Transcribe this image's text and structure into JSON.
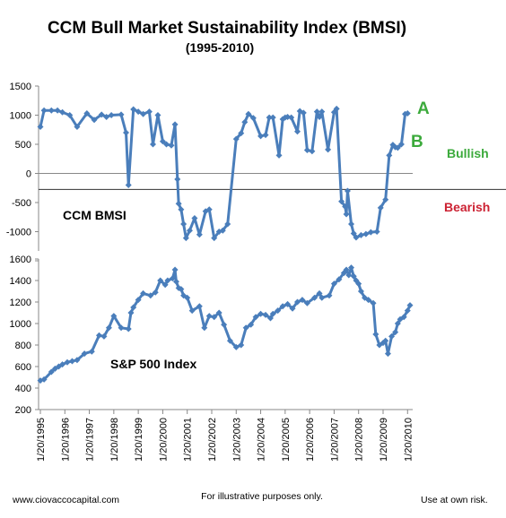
{
  "chart_data": [
    {
      "type": "line",
      "title": "CCM Bull Market Sustainability Index (BMSI)",
      "subtitle": "(1995-2010)",
      "series_label": "CCM BMSI",
      "ylim": [
        -1500,
        1500
      ],
      "yticks": [
        1500,
        1000,
        500,
        0,
        -500,
        -1000,
        -1500
      ],
      "ytick_labels": [
        "1500",
        "1000",
        "500",
        "0",
        "-500",
        "-1000",
        ""
      ],
      "threshold_line": -275,
      "zones": {
        "bullish": "Bullish",
        "bearish": "Bearish"
      },
      "markers": {
        "a": "A",
        "b": "B"
      },
      "colors": {
        "line": "#4a7ebb",
        "bullish": "#3caa3c",
        "bearish": "#cc2233",
        "marker_a": "#3caa3c",
        "marker_b": "#3caa3c"
      },
      "x_range": [
        1995.0,
        2010.1
      ],
      "x": [
        1995.0,
        1995.15,
        1995.45,
        1995.7,
        1995.9,
        1996.2,
        1996.5,
        1996.9,
        1997.2,
        1997.5,
        1997.7,
        1997.9,
        1998.3,
        1998.5,
        1998.6,
        1998.8,
        1999.0,
        1999.2,
        1999.45,
        1999.6,
        1999.8,
        2000.0,
        2000.15,
        2000.35,
        2000.5,
        2000.6,
        2000.65,
        2000.75,
        2000.85,
        2000.95,
        2001.1,
        2001.3,
        2001.5,
        2001.75,
        2001.9,
        2002.1,
        2002.3,
        2002.45,
        2002.65,
        2003.0,
        2003.2,
        2003.35,
        2003.5,
        2003.7,
        2004.0,
        2004.2,
        2004.35,
        2004.5,
        2004.75,
        2004.9,
        2005.0,
        2005.1,
        2005.25,
        2005.5,
        2005.6,
        2005.75,
        2005.9,
        2006.1,
        2006.3,
        2006.4,
        2006.5,
        2006.75,
        2007.0,
        2007.1,
        2007.3,
        2007.45,
        2007.5,
        2007.55,
        2007.7,
        2007.8,
        2007.9,
        2008.1,
        2008.3,
        2008.5,
        2008.75,
        2008.9,
        2009.1,
        2009.25,
        2009.4,
        2009.5,
        2009.6,
        2009.75,
        2009.9,
        2010.0
      ],
      "values": [
        800,
        1080,
        1080,
        1080,
        1050,
        1000,
        800,
        1030,
        920,
        1010,
        970,
        1000,
        1010,
        700,
        -200,
        1100,
        1060,
        1020,
        1060,
        500,
        1000,
        550,
        500,
        480,
        840,
        -100,
        -520,
        -620,
        -870,
        -1110,
        -980,
        -770,
        -1050,
        -650,
        -620,
        -1110,
        -1000,
        -980,
        -870,
        590,
        690,
        880,
        1020,
        950,
        640,
        660,
        960,
        960,
        310,
        930,
        960,
        970,
        960,
        720,
        1070,
        1040,
        400,
        380,
        1060,
        970,
        1060,
        410,
        1050,
        1110,
        -480,
        -570,
        -700,
        -300,
        -870,
        -1030,
        -1100,
        -1060,
        -1040,
        -1010,
        -1000,
        -590,
        -450,
        310,
        490,
        450,
        440,
        500,
        1020,
        1030
      ]
    },
    {
      "type": "line",
      "series_label": "S&P 500 Index",
      "ylim": [
        200,
        1600
      ],
      "yticks": [
        1600,
        1400,
        1200,
        1000,
        800,
        600,
        400,
        200
      ],
      "ytick_labels": [
        "1600",
        "1400",
        "1200",
        "1000",
        "800",
        "600",
        "400",
        "200"
      ],
      "colors": {
        "line": "#4a7ebb"
      },
      "x_range": [
        1995.0,
        2010.1
      ],
      "x": [
        1995.0,
        1995.15,
        1995.45,
        1995.6,
        1995.75,
        1995.9,
        1996.1,
        1996.3,
        1996.5,
        1996.8,
        1997.1,
        1997.4,
        1997.6,
        1997.8,
        1998.0,
        1998.3,
        1998.6,
        1998.7,
        1998.8,
        1999.0,
        1999.2,
        1999.5,
        1999.7,
        1999.9,
        2000.1,
        2000.2,
        2000.4,
        2000.5,
        2000.55,
        2000.65,
        2000.75,
        2000.85,
        2001.0,
        2001.2,
        2001.5,
        2001.7,
        2001.9,
        2002.1,
        2002.3,
        2002.5,
        2002.75,
        2003.0,
        2003.2,
        2003.4,
        2003.6,
        2003.8,
        2004.0,
        2004.2,
        2004.4,
        2004.5,
        2004.7,
        2004.9,
        2005.1,
        2005.3,
        2005.5,
        2005.7,
        2005.9,
        2006.2,
        2006.4,
        2006.5,
        2006.8,
        2007.0,
        2007.2,
        2007.4,
        2007.5,
        2007.6,
        2007.7,
        2007.8,
        2007.9,
        2008.0,
        2008.1,
        2008.25,
        2008.4,
        2008.6,
        2008.7,
        2008.85,
        2009.0,
        2009.1,
        2009.2,
        2009.35,
        2009.5,
        2009.6,
        2009.7,
        2009.85,
        2010.0,
        2010.1
      ],
      "values": [
        470,
        480,
        550,
        580,
        600,
        620,
        640,
        650,
        660,
        720,
        740,
        890,
        880,
        960,
        1070,
        960,
        950,
        1100,
        1150,
        1220,
        1280,
        1260,
        1290,
        1400,
        1360,
        1400,
        1420,
        1500,
        1390,
        1330,
        1320,
        1260,
        1240,
        1120,
        1160,
        960,
        1070,
        1060,
        1100,
        990,
        840,
        780,
        800,
        960,
        990,
        1060,
        1090,
        1080,
        1050,
        1090,
        1120,
        1160,
        1180,
        1140,
        1200,
        1220,
        1190,
        1240,
        1280,
        1240,
        1260,
        1370,
        1410,
        1470,
        1500,
        1450,
        1520,
        1440,
        1400,
        1370,
        1300,
        1240,
        1220,
        1190,
        900,
        800,
        820,
        840,
        720,
        880,
        920,
        1000,
        1040,
        1060,
        1120,
        1170
      ],
      "xtick_labels": [
        "1/20/1995",
        "1/20/1996",
        "1/20/1997",
        "1/20/1998",
        "1/20/1999",
        "1/20/2000",
        "1/20/2001",
        "1/20/2002",
        "1/20/2003",
        "1/20/2004",
        "1/20/2005",
        "1/20/2006",
        "1/20/2007",
        "1/20/2008",
        "1/20/2009",
        "1/20/2010"
      ]
    }
  ],
  "footer": {
    "website": "www.ciovaccocapital.com",
    "note": "For illustrative purposes only.",
    "risk": "Use at own risk."
  }
}
